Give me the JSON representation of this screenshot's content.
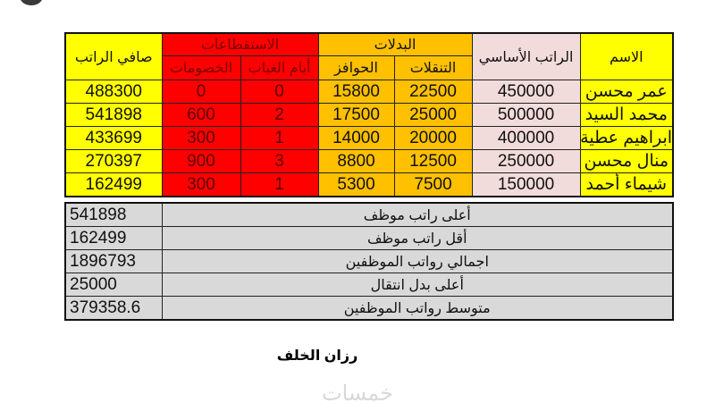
{
  "headers": {
    "name": "الاسم",
    "basic_salary": "الراتب الأساسي",
    "allowances": "البدلات",
    "transport": "التنقلات",
    "incentives": "الحوافز",
    "deductions_group": "الاستقطاعات",
    "absence_days": "أيام الغياب",
    "deductions": "الخصومات",
    "net_salary": "صافي الراتب"
  },
  "rows": [
    {
      "name": "عمر محسن",
      "basic": "450000",
      "transport": "22500",
      "incentives": "15800",
      "absence": "0",
      "deductions": "0",
      "net": "488300"
    },
    {
      "name": "محمد السيد",
      "basic": "500000",
      "transport": "25000",
      "incentives": "17500",
      "absence": "2",
      "deductions": "600",
      "net": "541898"
    },
    {
      "name": "ابراهيم عطية",
      "basic": "400000",
      "transport": "20000",
      "incentives": "14000",
      "absence": "1",
      "deductions": "300",
      "net": "433699"
    },
    {
      "name": "منال محسن",
      "basic": "250000",
      "transport": "12500",
      "incentives": "8800",
      "absence": "3",
      "deductions": "900",
      "net": "270397"
    },
    {
      "name": "شيماء أحمد",
      "basic": "150000",
      "transport": "7500",
      "incentives": "5300",
      "absence": "1",
      "deductions": "300",
      "net": "162499"
    }
  ],
  "summary": [
    {
      "label": "أعلى راتب موظف",
      "value": "541898"
    },
    {
      "label": "أقل راتب موظف",
      "value": "162499"
    },
    {
      "label": "اجمالي رواتب الموظفين",
      "value": "1896793"
    },
    {
      "label": "أعلى بدل انتقال",
      "value": "25000"
    },
    {
      "label": "متوسط رواتب الموظفين",
      "value": "379358.6"
    }
  ],
  "author": "رزان الخلف",
  "watermark": "خمسات",
  "colors": {
    "yellow": "#ffff00",
    "red": "#ff0000",
    "orange": "#ffc000",
    "pink": "#f2dcdb",
    "gray": "#d9d9d9"
  }
}
